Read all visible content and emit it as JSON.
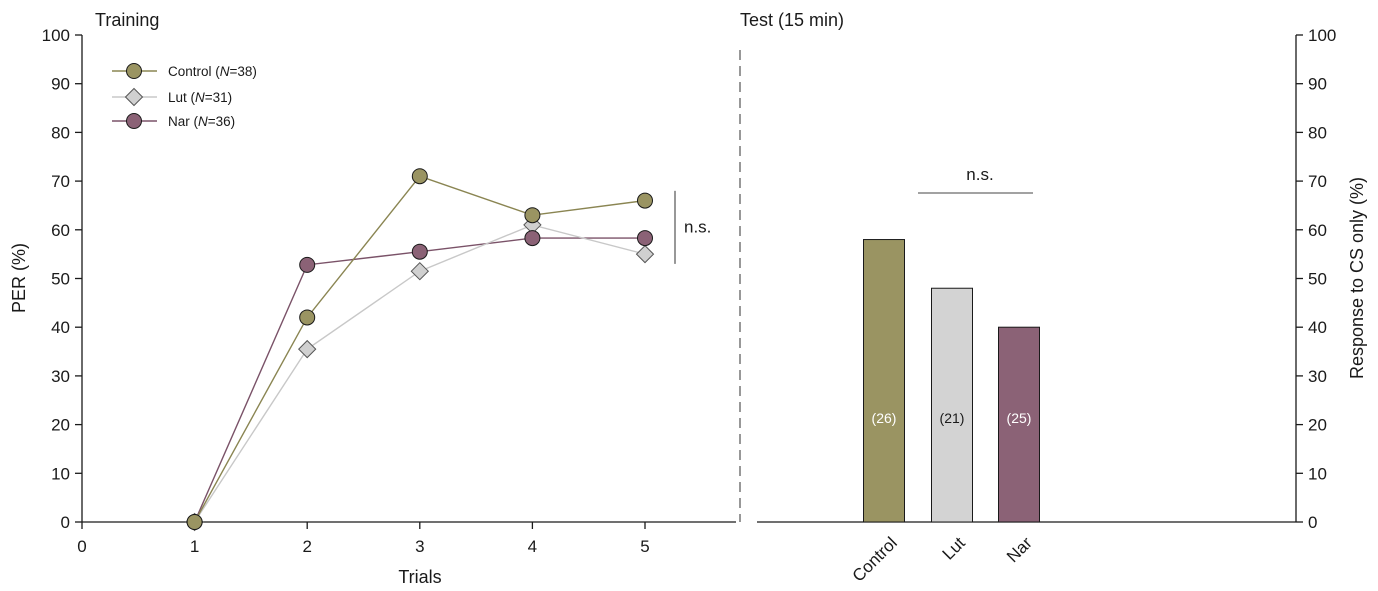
{
  "chart_data": [
    {
      "type": "line",
      "title": "Training",
      "xlabel": "Trials",
      "ylabel": "PER (%)",
      "xlim": [
        0,
        6
      ],
      "ylim": [
        0,
        100
      ],
      "x_ticks": [
        "0",
        "1",
        "2",
        "3",
        "4",
        "5"
      ],
      "y_ticks": [
        "0",
        "10",
        "20",
        "30",
        "40",
        "50",
        "60",
        "70",
        "80",
        "90",
        "100"
      ],
      "legend_position": "top-left",
      "series": [
        {
          "label_main": "Control (",
          "label_n": "N",
          "label_rest": "=38)",
          "marker": "circle",
          "color": "#9a9462",
          "line_color": "#8a8552",
          "values": [
            [
              1,
              0
            ],
            [
              2,
              42
            ],
            [
              3,
              71
            ],
            [
              4,
              63
            ],
            [
              5,
              66
            ]
          ]
        },
        {
          "label_main": "Lut (",
          "label_n": "N",
          "label_rest": "=31)",
          "marker": "diamond",
          "color": "#d0d0d0",
          "line_color": "#c8c8c8",
          "values": [
            [
              1,
              0
            ],
            [
              2,
              35.5
            ],
            [
              3,
              51.5
            ],
            [
              4,
              61
            ],
            [
              5,
              55
            ]
          ]
        },
        {
          "label_main": "Nar (",
          "label_n": "N",
          "label_rest": "=36)",
          "marker": "circle",
          "color": "#8b6276",
          "line_color": "#7a5268",
          "values": [
            [
              1,
              0
            ],
            [
              2,
              52.8
            ],
            [
              3,
              55.5
            ],
            [
              4,
              58.3
            ],
            [
              5,
              58.3
            ]
          ]
        }
      ],
      "annotation": {
        "text": "n.s.",
        "y_range": [
          53,
          68
        ]
      }
    },
    {
      "type": "bar",
      "title": "Test (15 min)",
      "ylabel": "Response to CS only (%)",
      "ylim": [
        0,
        100
      ],
      "y_ticks": [
        "0",
        "10",
        "20",
        "30",
        "40",
        "50",
        "60",
        "70",
        "80",
        "90",
        "100"
      ],
      "categories": [
        "Control",
        "Lut",
        "Nar"
      ],
      "values": [
        58,
        48,
        40
      ],
      "counts": [
        "(26)",
        "(21)",
        "(25)"
      ],
      "colors": [
        "#9a9462",
        "#d3d3d3",
        "#8b6276"
      ],
      "count_colors": [
        "#ffffff",
        "#1a1a1a",
        "#ffffff"
      ],
      "annotation": {
        "text": "n.s."
      }
    }
  ]
}
